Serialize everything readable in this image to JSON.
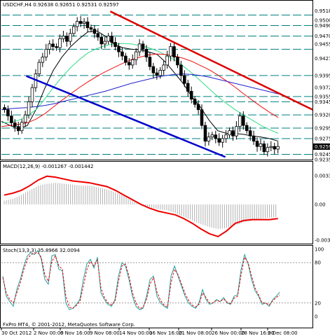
{
  "header": {
    "main_title": "USDCHF,H4  0.92638 0.92651 0.92531 0.92597",
    "macd_title": "MACD(12,26,9) -0.001267 -0.001442",
    "stoch_title": "Stoch(13,3,3) 35.8966 32.0094",
    "footer": "FxPro MT4, © 2001-2012, MetaQuotes Software Corp."
  },
  "colors": {
    "candle": "#000000",
    "ma_short": "#000000",
    "ma_green": "#33dd88",
    "ma_red": "#ee1111",
    "ma_blue": "#2222cc",
    "trend_blue": "#0000cc",
    "trend_red": "#dd0000",
    "level_line": "#008080",
    "macd_signal": "#ee0000",
    "macd_hist": "#b0b0b0",
    "stoch_main": "#20a0a0",
    "stoch_signal": "#ee0000",
    "price_tag_bg": "#000000"
  },
  "chart_data": [
    {
      "type": "candlestick",
      "panel": "price",
      "symbol": "USDCHF",
      "timeframe": "H4",
      "last_price": "0.92597",
      "x_tick_labels": [
        "30 Oct 2012",
        "2 Nov 00:00",
        "6 Nov 16:00",
        "9 Nov 08:00",
        "14 Nov 00:00",
        "16 Nov 16:00",
        "21 Nov 08:00",
        "26 Nov 00:00",
        "28 Nov 16:00",
        "3 Dec 08:00"
      ],
      "y_tick_labels": [
        "0.95180",
        "0.95000",
        "0.94900",
        "0.94700",
        "0.94550",
        "0.94275",
        "0.93950",
        "0.93725",
        "0.93550",
        "0.93450",
        "0.93200",
        "0.92950",
        "0.92750",
        "0.92597",
        "0.92450",
        "0.92350"
      ],
      "ylim": [
        0.9235,
        0.952
      ],
      "horizontal_levels": [
        0.951,
        0.949,
        0.947,
        0.9445,
        0.9395,
        0.9355,
        0.9345,
        0.932,
        0.9295,
        0.9275,
        0.9245
      ],
      "close_path": [
        0.933,
        0.9318,
        0.9305,
        0.9298,
        0.929,
        0.9306,
        0.932,
        0.9345,
        0.9372,
        0.9398,
        0.942,
        0.943,
        0.9445,
        0.9455,
        0.945,
        0.9448,
        0.9465,
        0.947,
        0.946,
        0.9475,
        0.9488,
        0.9498,
        0.9494,
        0.9497,
        0.9486,
        0.9483,
        0.9475,
        0.9468,
        0.9455,
        0.946,
        0.947,
        0.9458,
        0.945,
        0.944,
        0.9432,
        0.942,
        0.9415,
        0.9425,
        0.944,
        0.9455,
        0.9445,
        0.943,
        0.9412,
        0.94,
        0.9395,
        0.9405,
        0.9415,
        0.9432,
        0.945,
        0.943,
        0.9415,
        0.9395,
        0.938,
        0.9365,
        0.935,
        0.934,
        0.933,
        0.93,
        0.927,
        0.9278,
        0.9282,
        0.9275,
        0.9268,
        0.9275,
        0.9282,
        0.929,
        0.928,
        0.9298,
        0.9318,
        0.93,
        0.929,
        0.928,
        0.927,
        0.926,
        0.9265,
        0.925,
        0.9258,
        0.926,
        0.9255,
        0.926
      ],
      "moving_averages": [
        {
          "color_key": "ma_short",
          "values": [
            0.9308,
            0.93,
            0.9293,
            0.93,
            0.933,
            0.937,
            0.9405,
            0.943,
            0.945,
            0.9465,
            0.9478,
            0.948,
            0.947,
            0.9455,
            0.9448,
            0.9445,
            0.9444,
            0.944,
            0.9435,
            0.942,
            0.94,
            0.938,
            0.9355,
            0.9335,
            0.931,
            0.929,
            0.9285,
            0.9285,
            0.9283,
            0.928,
            0.9278,
            0.9275,
            0.927
          ]
        },
        {
          "color_key": "ma_green",
          "values": [
            0.9305,
            0.9306,
            0.931,
            0.9318,
            0.933,
            0.935,
            0.9372,
            0.9392,
            0.941,
            0.9425,
            0.9438,
            0.9446,
            0.9452,
            0.9455,
            0.9456,
            0.9455,
            0.9452,
            0.9448,
            0.9442,
            0.9434,
            0.9425,
            0.9413,
            0.94,
            0.9385,
            0.937,
            0.9355,
            0.9342,
            0.933,
            0.932,
            0.931,
            0.93,
            0.9292,
            0.9285
          ]
        },
        {
          "color_key": "ma_red",
          "values": [
            0.9298,
            0.93,
            0.9302,
            0.9305,
            0.9312,
            0.9322,
            0.9335,
            0.9348,
            0.936,
            0.9372,
            0.9383,
            0.9393,
            0.9402,
            0.941,
            0.9418,
            0.9425,
            0.943,
            0.9434,
            0.9436,
            0.9435,
            0.9432,
            0.9428,
            0.9422,
            0.9414,
            0.9406,
            0.9396,
            0.9385,
            0.9373,
            0.936,
            0.9348,
            0.9336,
            0.9325,
            0.9315
          ]
        },
        {
          "color_key": "ma_blue",
          "values": [
            0.933,
            0.9332,
            0.9333,
            0.9334,
            0.9336,
            0.9338,
            0.9341,
            0.9345,
            0.9349,
            0.9353,
            0.9357,
            0.9361,
            0.9365,
            0.937,
            0.9375,
            0.938,
            0.9384,
            0.9388,
            0.9392,
            0.9395,
            0.9397,
            0.9398,
            0.9397,
            0.9395,
            0.9392,
            0.9388,
            0.9384,
            0.938,
            0.9376,
            0.9372,
            0.9368,
            0.9364,
            0.936
          ]
        }
      ],
      "trendlines": [
        {
          "color_key": "trend_blue",
          "from": [
            0.08,
            0.9394
          ],
          "to": [
            0.72,
            0.924
          ]
        },
        {
          "color_key": "trend_red",
          "from": [
            0.35,
            0.9517
          ],
          "to": [
            1.0,
            0.933
          ]
        }
      ]
    },
    {
      "type": "macd",
      "panel": "macd",
      "y_tick_labels": [
        "0.00330",
        "0.00",
        "-0.00377"
      ],
      "ylim": [
        -0.004,
        0.0035
      ],
      "signal": [
        0.001,
        0.0012,
        0.0015,
        0.002,
        0.0026,
        0.003,
        0.0029,
        0.0027,
        0.0025,
        0.0024,
        0.0023,
        0.0021,
        0.0019,
        0.0015,
        0.001,
        0.0005,
        0.0,
        -0.0004,
        -0.0007,
        -0.0009,
        -0.0011,
        -0.0015,
        -0.002,
        -0.0026,
        -0.0031,
        -0.0034,
        -0.0028,
        -0.002,
        -0.0017,
        -0.0016,
        -0.0016,
        -0.0016,
        -0.0015
      ],
      "histogram": [
        0.0004,
        0.0006,
        0.001,
        0.0015,
        0.002,
        0.0022,
        0.0023,
        0.0022,
        0.0021,
        0.002,
        0.002,
        0.0018,
        0.0016,
        0.0013,
        0.0009,
        0.0004,
        0.0,
        -0.0003,
        -0.0005,
        -0.0006,
        -0.0009,
        -0.0013,
        -0.0017,
        -0.0021,
        -0.0024,
        -0.0026,
        -0.0025,
        -0.0022,
        -0.0019,
        -0.0017,
        -0.0015,
        -0.0014,
        -0.0013
      ]
    },
    {
      "type": "stochastic",
      "panel": "stoch",
      "y_tick_labels": [
        "100",
        "80",
        "20",
        "0"
      ],
      "levels": [
        80,
        20
      ],
      "ylim": [
        0,
        100
      ],
      "main": [
        60,
        30,
        22,
        15,
        40,
        55,
        75,
        90,
        95,
        92,
        98,
        85,
        55,
        48,
        90,
        92,
        70,
        68,
        20,
        10,
        12,
        18,
        25,
        55,
        78,
        85,
        72,
        88,
        35,
        25,
        18,
        15,
        25,
        60,
        80,
        75,
        55,
        30,
        15,
        10,
        12,
        30,
        55,
        60,
        30,
        20,
        15,
        12,
        60,
        75,
        60,
        45,
        30,
        20,
        15,
        12,
        20,
        40,
        25,
        18,
        20,
        25,
        22,
        28,
        20,
        18,
        30,
        32,
        70,
        92,
        78,
        55,
        38,
        30,
        18,
        20,
        15,
        25,
        30,
        36
      ],
      "signal": [
        58,
        35,
        25,
        20,
        35,
        50,
        70,
        85,
        92,
        94,
        95,
        88,
        62,
        52,
        82,
        90,
        75,
        70,
        30,
        14,
        12,
        16,
        22,
        45,
        70,
        82,
        75,
        84,
        42,
        28,
        20,
        17,
        22,
        52,
        75,
        78,
        60,
        35,
        20,
        12,
        13,
        25,
        48,
        58,
        36,
        24,
        17,
        14,
        50,
        70,
        62,
        48,
        34,
        24,
        17,
        14,
        18,
        35,
        28,
        20,
        20,
        24,
        22,
        26,
        21,
        19,
        27,
        30,
        62,
        88,
        80,
        60,
        42,
        32,
        20,
        20,
        17,
        23,
        28,
        32
      ]
    }
  ]
}
